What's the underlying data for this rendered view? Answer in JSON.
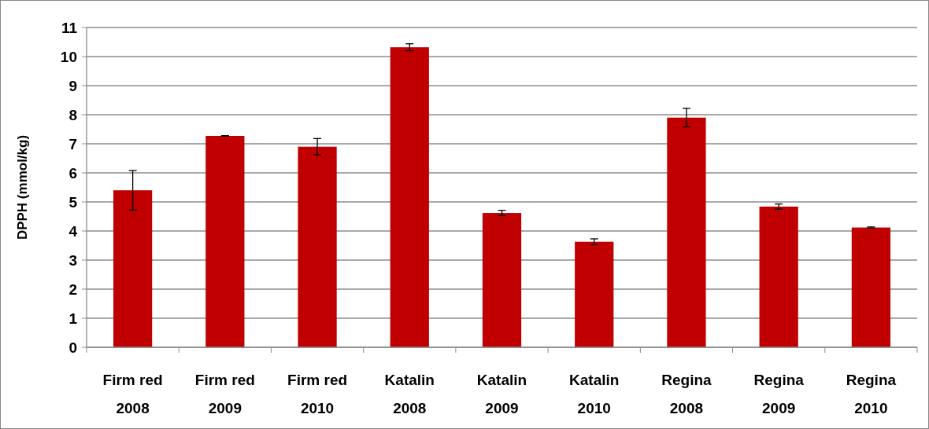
{
  "chart_data": {
    "type": "bar",
    "ylabel": "DPPH (mmol/kg)",
    "categories": [
      "Firm red\n2008",
      "Firm red\n2009",
      "Firm red\n2010",
      "Katalin\n2008",
      "Katalin\n2009",
      "Katalin\n2010",
      "Regina\n2008",
      "Regina\n2009",
      "Regina\n2010"
    ],
    "values": [
      5.4,
      7.27,
      6.9,
      10.32,
      4.62,
      3.63,
      7.9,
      4.84,
      4.12
    ],
    "errors": [
      0.68,
      0.01,
      0.28,
      0.12,
      0.09,
      0.1,
      0.32,
      0.09,
      0.02
    ],
    "color": "#c00000",
    "ylim": [
      0,
      11
    ],
    "yticks": [
      0,
      1,
      2,
      3,
      4,
      5,
      6,
      7,
      8,
      9,
      10,
      11
    ],
    "grid": "y"
  }
}
